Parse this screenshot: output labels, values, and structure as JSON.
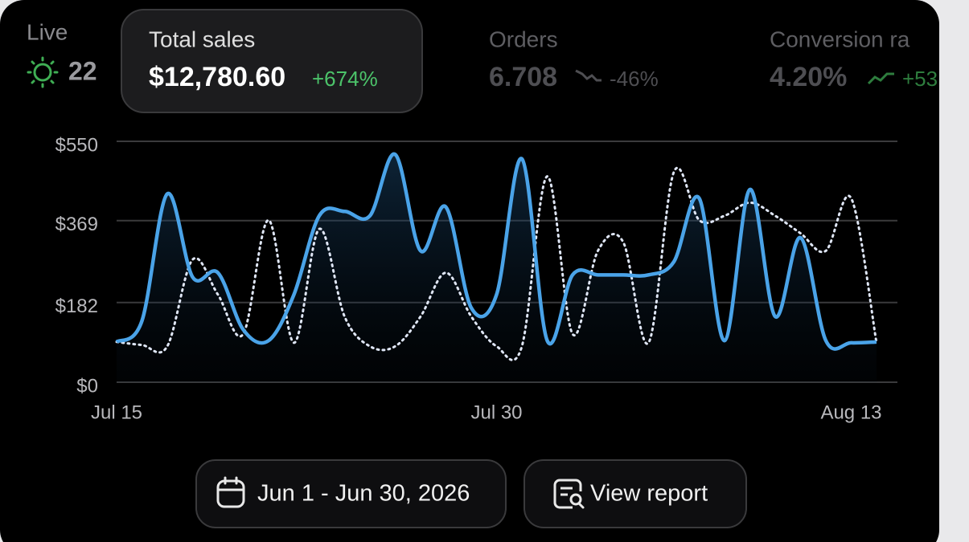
{
  "live": {
    "label": "Live",
    "value": "22"
  },
  "metrics": [
    {
      "label": "Total sales",
      "value": "$12,780.60",
      "change": "+674%"
    },
    {
      "label": "Orders",
      "value": "6.708",
      "change": "-46%"
    },
    {
      "label": "Conversion ra",
      "value": "4.20%",
      "change": "+53"
    }
  ],
  "chart_data": {
    "type": "line",
    "categories": [
      "Jul 15",
      null,
      null,
      null,
      null,
      null,
      null,
      null,
      null,
      null,
      null,
      null,
      null,
      null,
      null,
      "Jul 30",
      null,
      null,
      null,
      null,
      null,
      null,
      null,
      null,
      null,
      null,
      null,
      null,
      null,
      "Aug 13",
      null
    ],
    "series": [
      {
        "color": "#4aa3e8",
        "style": "solid",
        "values": [
          92,
          140,
          430,
          240,
          250,
          120,
          95,
          200,
          380,
          390,
          380,
          520,
          300,
          400,
          170,
          200,
          510,
          95,
          245,
          245,
          245,
          245,
          275,
          420,
          95,
          440,
          150,
          330,
          95,
          90,
          92
        ]
      },
      {
        "color": "#dfe6f5",
        "style": "dotted",
        "values": [
          92,
          85,
          82,
          280,
          200,
          110,
          370,
          90,
          350,
          150,
          82,
          82,
          150,
          250,
          150,
          82,
          82,
          470,
          110,
          300,
          320,
          90,
          480,
          370,
          380,
          410,
          380,
          340,
          300,
          420,
          90
        ]
      }
    ],
    "ylim": [
      0,
      550
    ],
    "yticks": [
      {
        "value": 0,
        "label": "$0"
      },
      {
        "value": 182,
        "label": "$182"
      },
      {
        "value": 369,
        "label": "$369"
      },
      {
        "value": 550,
        "label": "$550"
      }
    ],
    "grid": true
  },
  "buttons": [
    {
      "label": "Jun 1 - Jun 30, 2026"
    },
    {
      "label": "View report"
    }
  ]
}
